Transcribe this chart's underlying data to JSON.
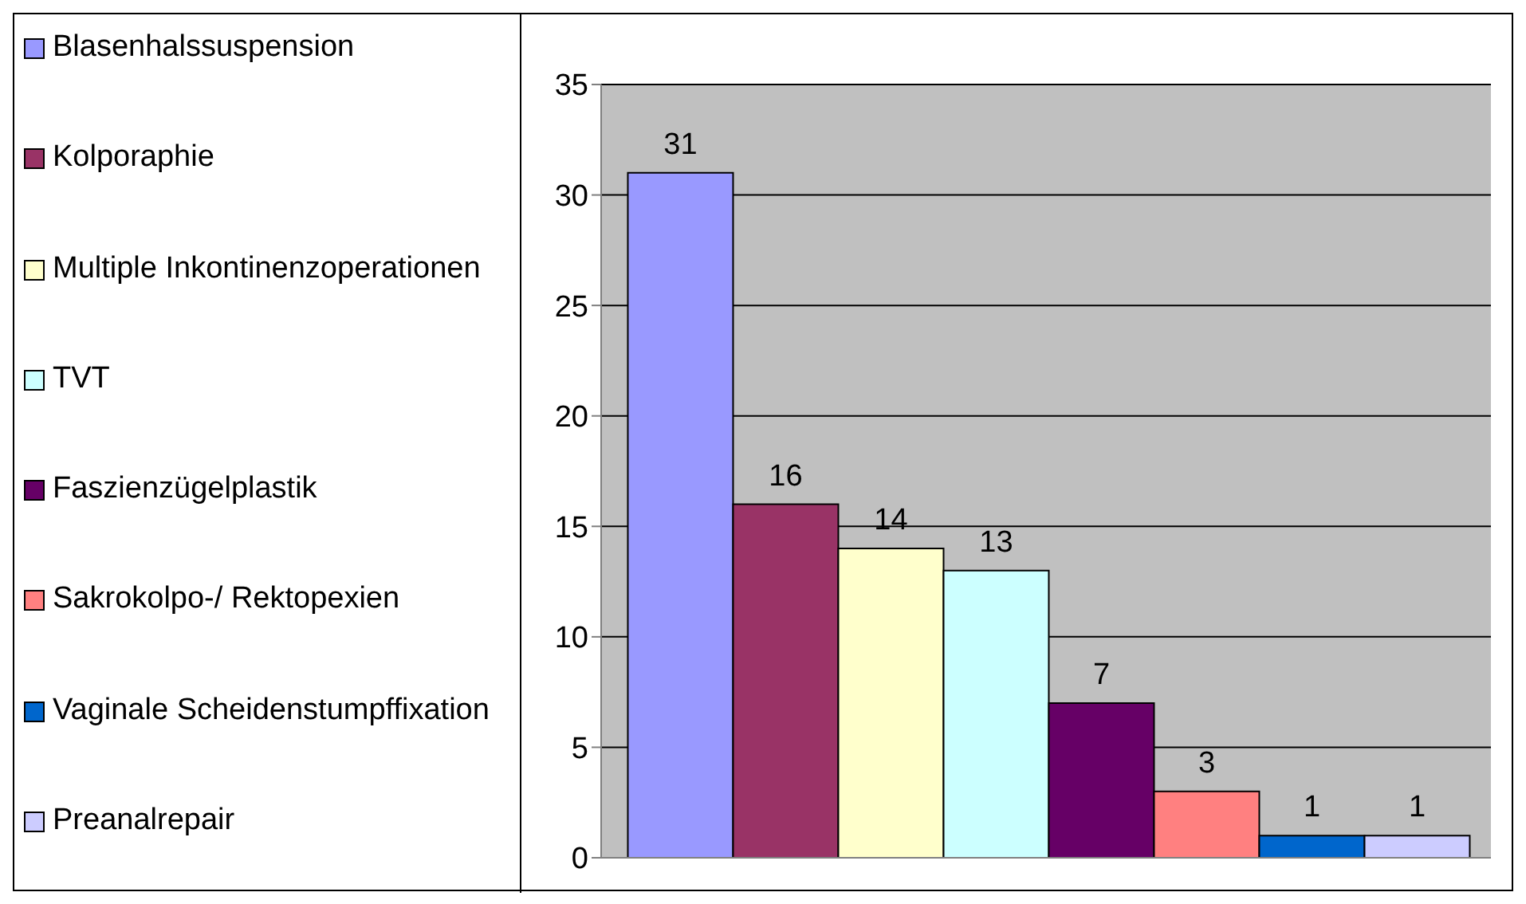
{
  "chart_data": {
    "type": "bar",
    "categories": [
      null
    ],
    "series": [
      {
        "name": "Blasenhalssuspension",
        "color": "#9999ff",
        "values": [
          31
        ]
      },
      {
        "name": "Kolporaphie",
        "color": "#993366",
        "values": [
          16
        ]
      },
      {
        "name": "Multiple Inkontinenzoperationen",
        "color": "#ffffcc",
        "values": [
          14
        ]
      },
      {
        "name": "TVT",
        "color": "#ccffff",
        "values": [
          13
        ]
      },
      {
        "name": "Faszienzügelplastik",
        "color": "#660066",
        "values": [
          7
        ]
      },
      {
        "name": "Sakrokolpo-/ Rektopexien",
        "color": "#ff8080",
        "values": [
          3
        ]
      },
      {
        "name": "Vaginale Scheidenstumpffixation",
        "color": "#0066cc",
        "values": [
          1
        ]
      },
      {
        "name": "Preanalrepair",
        "color": "#ccccff",
        "values": [
          1
        ]
      }
    ],
    "ylim": [
      0,
      35
    ],
    "yticks": [
      0,
      5,
      10,
      15,
      20,
      25,
      30,
      35
    ],
    "grid": "y",
    "legend": "left",
    "data_labels": true
  }
}
